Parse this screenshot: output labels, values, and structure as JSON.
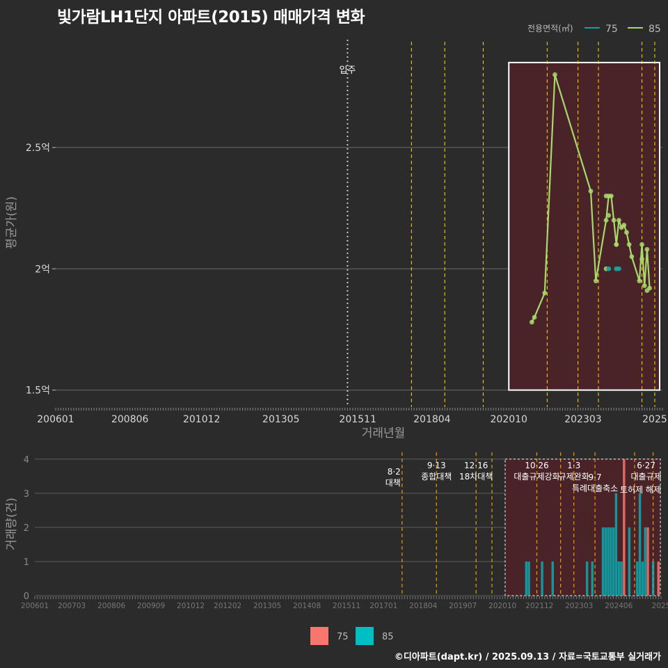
{
  "title": "빛가람LH1단지 아파트(2015) 매매가격 변화",
  "credit": "©디아파트(dapt.kr) / 2025.09.13 / 자료=국토교통부 실거래가",
  "colors": {
    "s75": "#17a0a0",
    "s85": "#a8d96c",
    "bar75": "#f8766d",
    "bar85": "#00bfc4",
    "policy": "#ffd700"
  },
  "chart_data": [
    {
      "type": "line",
      "title": "빛가람LH1단지 아파트(2015) 매매가격 변화",
      "xlabel": "거래년월",
      "ylabel": "평균가(원)",
      "ylim": [
        1.43,
        2.95
      ],
      "y_ticks": [
        {
          "value": 1.5,
          "label": "1.5억"
        },
        {
          "value": 2.0,
          "label": "2억"
        },
        {
          "value": 2.5,
          "label": "2.5억"
        }
      ],
      "x_range": [
        2006.0,
        2025.75
      ],
      "x_ticks": [
        {
          "value": 2006.0,
          "label": "200601"
        },
        {
          "value": 2008.417,
          "label": "200806"
        },
        {
          "value": 2010.75,
          "label": "201012"
        },
        {
          "value": 2013.333,
          "label": "201305"
        },
        {
          "value": 2015.833,
          "label": "201511"
        },
        {
          "value": 2018.25,
          "label": "201804"
        },
        {
          "value": 2020.75,
          "label": "202010"
        },
        {
          "value": 2023.167,
          "label": "202303"
        },
        {
          "value": 2025.5,
          "label": "2025"
        }
      ],
      "legend_title": "전용면적(㎡)",
      "legend": [
        "75",
        "85"
      ],
      "legend_position": "top-right",
      "move_in": {
        "x": 2015.5,
        "label": "입주"
      },
      "policy_lines": [
        2017.583,
        2018.667,
        2019.917,
        2022.0,
        2023.0,
        2023.667,
        2025.083,
        2025.5
      ],
      "highlight": {
        "x0": 2020.75,
        "x1": 2025.75,
        "y0": 1.5,
        "y1": 2.85
      },
      "series": [
        {
          "name": "75",
          "x": [
            2024.0,
            2024.25,
            2024.33
          ],
          "y": [
            2.0,
            2.0,
            2.0
          ]
        },
        {
          "name": "85",
          "x": [
            2021.5,
            2021.583,
            2021.917,
            2022.25,
            2023.417,
            2023.583,
            2023.917,
            2024.0,
            2024.083,
            2024.167,
            2024.25,
            2024.333,
            2024.417,
            2024.5,
            2024.583,
            2024.667,
            2024.75,
            2025.0,
            2025.083,
            2025.167,
            2025.25,
            2025.333
          ],
          "y": [
            1.78,
            1.8,
            1.9,
            2.8,
            2.32,
            1.95,
            2.2,
            2.3,
            2.3,
            2.2,
            2.1,
            2.2,
            2.17,
            2.18,
            2.15,
            2.1,
            2.05,
            1.95,
            2.1,
            1.93,
            2.08,
            1.92
          ]
        }
      ],
      "extra_points_85": [
        {
          "x": 2023.917,
          "y": 2.3
        },
        {
          "x": 2024.0,
          "y": 2.22
        },
        {
          "x": 2023.917,
          "y": 2.0
        },
        {
          "x": 2024.25,
          "y": 2.1
        },
        {
          "x": 2025.083,
          "y": 2.04
        },
        {
          "x": 2025.25,
          "y": 1.91
        }
      ]
    },
    {
      "type": "bar",
      "ylabel": "거래량(건)",
      "ylim": [
        0,
        4.2
      ],
      "y_ticks": [
        0,
        1,
        2,
        3,
        4
      ],
      "x_range": [
        2006.0,
        2025.75
      ],
      "x_ticks": [
        {
          "value": 2006.0,
          "label": "200601"
        },
        {
          "value": 2007.167,
          "label": "200703"
        },
        {
          "value": 2008.417,
          "label": "200806"
        },
        {
          "value": 2009.667,
          "label": "200909"
        },
        {
          "value": 2010.917,
          "label": "201012"
        },
        {
          "value": 2012.083,
          "label": "201202"
        },
        {
          "value": 2013.333,
          "label": "201305"
        },
        {
          "value": 2014.583,
          "label": "201408"
        },
        {
          "value": 2015.833,
          "label": "201511"
        },
        {
          "value": 2017.0,
          "label": "201701"
        },
        {
          "value": 2018.25,
          "label": "201804"
        },
        {
          "value": 2019.5,
          "label": "201907"
        },
        {
          "value": 2020.75,
          "label": "202010"
        },
        {
          "value": 2021.917,
          "label": "202112"
        },
        {
          "value": 2023.167,
          "label": "202303"
        },
        {
          "value": 2024.417,
          "label": "202406"
        },
        {
          "value": 2025.75,
          "label": "2025"
        }
      ],
      "legend": [
        "75",
        "85"
      ],
      "legend_position": "bottom",
      "highlight": {
        "x0": 2020.833,
        "x1": 2025.75,
        "y0": 0,
        "y1": 4
      },
      "policies": [
        {
          "x": 2017.583,
          "label": "8·2 대책"
        },
        {
          "x": 2018.667,
          "label": "9·13 종합대책"
        },
        {
          "x": 2019.917,
          "label": "12·16 18차대책"
        },
        {
          "x": 2020.417,
          "label": ""
        },
        {
          "x": 2021.833,
          "label": "10·26 대출규제강화"
        },
        {
          "x": 2022.583,
          "label": ""
        },
        {
          "x": 2023.0,
          "label": "1·3 규제완화"
        },
        {
          "x": 2023.667,
          "label": "9·7 특례대출축소"
        },
        {
          "x": 2024.917,
          "label": ""
        },
        {
          "x": 2025.5,
          "label": "6·27 대출규제"
        }
      ],
      "policy_text_extra": "토허제 해제",
      "bars_75": [
        {
          "x": 2024.583,
          "v": 4
        },
        {
          "x": 2025.333,
          "v": 2
        },
        {
          "x": 2025.667,
          "v": 1
        }
      ],
      "bars_85": [
        {
          "x": 2021.5,
          "v": 1
        },
        {
          "x": 2021.583,
          "v": 1
        },
        {
          "x": 2022.0,
          "v": 1
        },
        {
          "x": 2022.333,
          "v": 1
        },
        {
          "x": 2023.417,
          "v": 1
        },
        {
          "x": 2023.583,
          "v": 1
        },
        {
          "x": 2023.917,
          "v": 2
        },
        {
          "x": 2024.0,
          "v": 2
        },
        {
          "x": 2024.083,
          "v": 2
        },
        {
          "x": 2024.167,
          "v": 2
        },
        {
          "x": 2024.25,
          "v": 2
        },
        {
          "x": 2024.333,
          "v": 3
        },
        {
          "x": 2024.417,
          "v": 1
        },
        {
          "x": 2024.5,
          "v": 1
        },
        {
          "x": 2024.75,
          "v": 2
        },
        {
          "x": 2025.0,
          "v": 1
        },
        {
          "x": 2025.083,
          "v": 3
        },
        {
          "x": 2025.167,
          "v": 1
        },
        {
          "x": 2025.25,
          "v": 2
        },
        {
          "x": 2025.5,
          "v": 1
        }
      ]
    }
  ]
}
